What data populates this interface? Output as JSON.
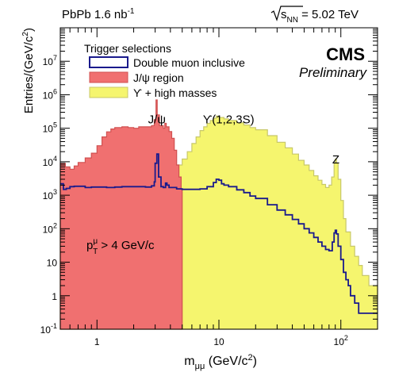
{
  "chart_data": {
    "type": "area",
    "header_left": {
      "main": "PbPb 1.6 nb",
      "sup": "-1"
    },
    "header_right": {
      "prefix": "s",
      "sub": "NN",
      "suffix": " = 5.02 TeV"
    },
    "experiment": "CMS",
    "status": "Preliminary",
    "legend_title": "Trigger selections",
    "xlabel": {
      "main": "m",
      "sub": "μμ",
      "unit": " (GeV/c",
      "unit_sup": "2",
      "close": ")"
    },
    "ylabel": {
      "main": "Entries/(GeV/c",
      "sup": "2",
      "close": ")"
    },
    "xscale": "log",
    "yscale": "log",
    "xlim": [
      0.5,
      200
    ],
    "ylim": [
      0.1,
      100000000
    ],
    "x_tick_labels": [
      {
        "x": 1,
        "text": "1"
      },
      {
        "x": 10,
        "text": "10"
      },
      {
        "x": 100,
        "text": "10",
        "sup": "2"
      }
    ],
    "y_tick_labels": [
      {
        "y": 0.1,
        "base": "10",
        "sup": "-1"
      },
      {
        "y": 1,
        "base": "1",
        "sup": ""
      },
      {
        "y": 10,
        "base": "10",
        "sup": ""
      },
      {
        "y": 100,
        "base": "10",
        "sup": "2"
      },
      {
        "y": 1000,
        "base": "10",
        "sup": "3"
      },
      {
        "y": 10000,
        "base": "10",
        "sup": "4"
      },
      {
        "y": 100000,
        "base": "10",
        "sup": "5"
      },
      {
        "y": 1000000,
        "base": "10",
        "sup": "6"
      },
      {
        "y": 10000000,
        "base": "10",
        "sup": "7"
      }
    ],
    "annotations": [
      {
        "text": "J/ψ",
        "x": 3.1,
        "y": 140000
      },
      {
        "text": "ϒ(1,2,3S)",
        "x": 12,
        "y": 140000
      },
      {
        "text": "Z",
        "x": 91,
        "y": 9000
      }
    ],
    "cut_label": {
      "p": "p",
      "sup": "μ",
      "sub": "T",
      "rest": " > 4 GeV/c",
      "x": 0.82,
      "y": 25
    },
    "series": [
      {
        "name": "Double muon inclusive",
        "style": "outline",
        "color": "#1a1a8c",
        "points": [
          [
            0.5,
            2200
          ],
          [
            0.53,
            1500
          ],
          [
            0.56,
            1600
          ],
          [
            0.6,
            1800
          ],
          [
            0.65,
            1850
          ],
          [
            0.7,
            1850
          ],
          [
            0.8,
            1700
          ],
          [
            0.9,
            1750
          ],
          [
            1.0,
            1750
          ],
          [
            1.2,
            1700
          ],
          [
            1.4,
            1750
          ],
          [
            1.6,
            1800
          ],
          [
            1.8,
            1800
          ],
          [
            2.0,
            1800
          ],
          [
            2.2,
            1800
          ],
          [
            2.5,
            1750
          ],
          [
            2.8,
            1900
          ],
          [
            2.95,
            2500
          ],
          [
            3.0,
            9000
          ],
          [
            3.1,
            17000
          ],
          [
            3.2,
            3500
          ],
          [
            3.35,
            1800
          ],
          [
            3.5,
            1700
          ],
          [
            3.65,
            2300
          ],
          [
            3.75,
            2000
          ],
          [
            3.9,
            1700
          ],
          [
            4.5,
            1550
          ],
          [
            5,
            1500
          ],
          [
            6,
            1500
          ],
          [
            7,
            1550
          ],
          [
            8,
            1800
          ],
          [
            9,
            2400
          ],
          [
            9.5,
            3000
          ],
          [
            10,
            2800
          ],
          [
            10.5,
            2200
          ],
          [
            11,
            2000
          ],
          [
            12,
            1800
          ],
          [
            14,
            1450
          ],
          [
            16,
            1200
          ],
          [
            18,
            950
          ],
          [
            20,
            800
          ],
          [
            25,
            520
          ],
          [
            30,
            360
          ],
          [
            35,
            260
          ],
          [
            40,
            190
          ],
          [
            45,
            140
          ],
          [
            50,
            100
          ],
          [
            55,
            75
          ],
          [
            60,
            55
          ],
          [
            65,
            40
          ],
          [
            70,
            30
          ],
          [
            75,
            24
          ],
          [
            80,
            22
          ],
          [
            85,
            40
          ],
          [
            88,
            75
          ],
          [
            90,
            90
          ],
          [
            92,
            70
          ],
          [
            95,
            30
          ],
          [
            100,
            12
          ],
          [
            105,
            5
          ],
          [
            110,
            3
          ],
          [
            115,
            2
          ],
          [
            120,
            1
          ],
          [
            130,
            0.6
          ],
          [
            140,
            0.3
          ],
          [
            160,
            0.3
          ],
          [
            200,
            0.3
          ]
        ]
      },
      {
        "name": "J/ψ region",
        "style": "fill",
        "color": "#f07070",
        "points": [
          [
            0.5,
            9000
          ],
          [
            0.55,
            7000
          ],
          [
            0.6,
            6000
          ],
          [
            0.65,
            7500
          ],
          [
            0.7,
            9500
          ],
          [
            0.8,
            13000
          ],
          [
            0.9,
            18000
          ],
          [
            1.0,
            30000
          ],
          [
            1.1,
            55000
          ],
          [
            1.2,
            78000
          ],
          [
            1.3,
            95000
          ],
          [
            1.4,
            105000
          ],
          [
            1.6,
            110000
          ],
          [
            1.8,
            105000
          ],
          [
            2.0,
            100000
          ],
          [
            2.2,
            110000
          ],
          [
            2.5,
            110000
          ],
          [
            2.8,
            120000
          ],
          [
            2.95,
            180000
          ],
          [
            3.05,
            700000
          ],
          [
            3.12,
            250000
          ],
          [
            3.25,
            120000
          ],
          [
            3.5,
            100000
          ],
          [
            3.6,
            140000
          ],
          [
            3.7,
            110000
          ],
          [
            3.9,
            80000
          ],
          [
            4.1,
            50000
          ],
          [
            4.3,
            22000
          ],
          [
            4.5,
            8000
          ],
          [
            4.7,
            3500
          ],
          [
            4.9,
            1500
          ],
          [
            5.0,
            1300
          ]
        ]
      },
      {
        "name": "ϒ + high masses",
        "style": "fill",
        "color": "#f5f56e",
        "points": [
          [
            0.5,
            6000
          ],
          [
            0.6,
            5500
          ],
          [
            0.7,
            6500
          ],
          [
            0.8,
            6500
          ],
          [
            1.0,
            6000
          ],
          [
            1.5,
            5500
          ],
          [
            2.0,
            5000
          ],
          [
            3.0,
            4500
          ],
          [
            4.0,
            6000
          ],
          [
            4.5,
            8000
          ],
          [
            5,
            12000
          ],
          [
            5.5,
            20000
          ],
          [
            6,
            35000
          ],
          [
            6.5,
            55000
          ],
          [
            7,
            85000
          ],
          [
            7.5,
            110000
          ],
          [
            8,
            140000
          ],
          [
            8.5,
            170000
          ],
          [
            9,
            200000
          ],
          [
            9.5,
            230000
          ],
          [
            10,
            210000
          ],
          [
            11,
            190000
          ],
          [
            12,
            170000
          ],
          [
            14,
            145000
          ],
          [
            16,
            125000
          ],
          [
            18,
            105000
          ],
          [
            20,
            90000
          ],
          [
            25,
            60000
          ],
          [
            30,
            38000
          ],
          [
            35,
            26000
          ],
          [
            40,
            17000
          ],
          [
            45,
            11000
          ],
          [
            50,
            8000
          ],
          [
            55,
            5500
          ],
          [
            60,
            3800
          ],
          [
            65,
            2800
          ],
          [
            70,
            2100
          ],
          [
            75,
            1700
          ],
          [
            80,
            2000
          ],
          [
            84,
            3500
          ],
          [
            88,
            9000
          ],
          [
            90,
            12000
          ],
          [
            92,
            9000
          ],
          [
            95,
            3000
          ],
          [
            100,
            700
          ],
          [
            105,
            200
          ],
          [
            110,
            80
          ],
          [
            120,
            30
          ],
          [
            130,
            15
          ],
          [
            140,
            8
          ],
          [
            150,
            4
          ],
          [
            170,
            2
          ],
          [
            200,
            1.5
          ]
        ]
      }
    ]
  }
}
